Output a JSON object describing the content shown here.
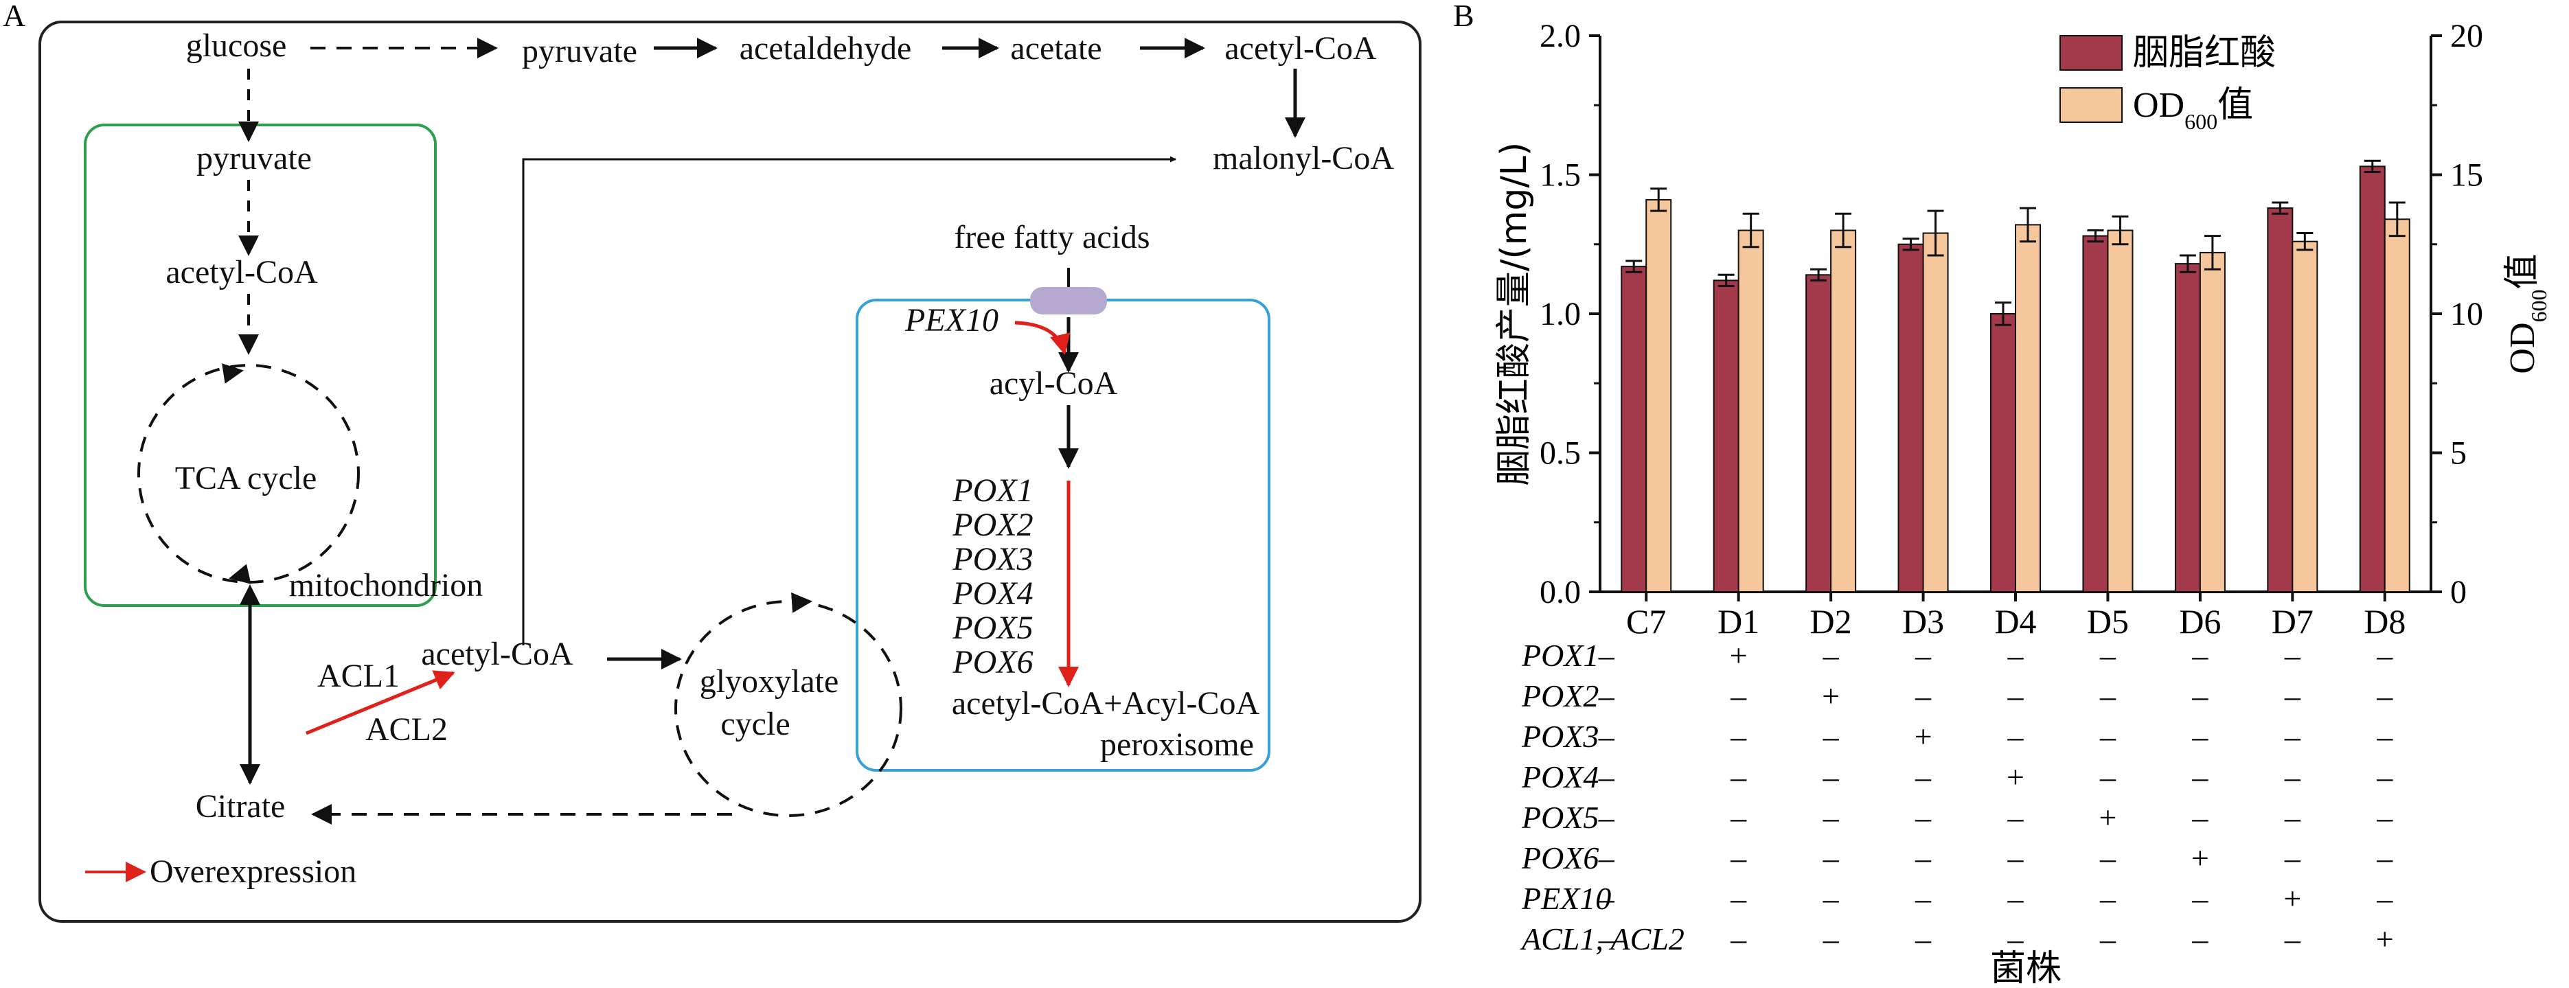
{
  "panel_labels": {
    "a": "A",
    "b": "B"
  },
  "pathway": {
    "nodes": {
      "glucose": "glucose",
      "pyruvate_top": "pyruvate",
      "acetaldehyde": "acetaldehyde",
      "acetate": "acetate",
      "acetyl_coa_top": "acetyl-CoA",
      "malonyl_coa": "malonyl-CoA",
      "pyruvate_mito": "pyruvate",
      "acetyl_coa_mito": "acetyl-CoA",
      "tca_cycle": "TCA cycle",
      "mitochondrion": "mitochondrion",
      "free_fatty_acids": "free fatty acids",
      "pex10": "PEX10",
      "acyl_coa": "acyl-CoA",
      "pox_genes": [
        "POX1",
        "POX2",
        "POX3",
        "POX4",
        "POX5",
        "POX6"
      ],
      "acetyl_acyl_coa": "acetyl-CoA+Acyl-CoA",
      "peroxisome": "peroxisome",
      "acl1": "ACL1",
      "acl2": "ACL2",
      "acetyl_coa_cyto": "acetyl-CoA",
      "glyoxylate_line1": "glyoxylate",
      "glyoxylate_line2": "cycle",
      "citrate": "Citrate"
    },
    "legend_overexpression": "Overexpression",
    "colors": {
      "mito_box": "#2e9e4f",
      "perox_box": "#3aa0d8",
      "overexpression": "#e0201b",
      "transporter": "#b6a9cf"
    }
  },
  "chart_data": {
    "type": "bar",
    "categories": [
      "C7",
      "D1",
      "D2",
      "D3",
      "D4",
      "D5",
      "D6",
      "D7",
      "D8"
    ],
    "series": [
      {
        "name": "胭脂红酸",
        "axis": "left",
        "color": "#a33a4c",
        "values": [
          1.17,
          1.12,
          1.14,
          1.25,
          1.0,
          1.28,
          1.18,
          1.38,
          1.53
        ],
        "errors": [
          0.02,
          0.02,
          0.02,
          0.02,
          0.04,
          0.02,
          0.03,
          0.02,
          0.02
        ]
      },
      {
        "name": "OD",
        "name_sub": "600",
        "name_suffix": "值",
        "axis": "right",
        "color": "#f6c79c",
        "values": [
          14.1,
          13.0,
          13.0,
          12.9,
          13.2,
          13.0,
          12.2,
          12.6,
          13.4
        ],
        "errors": [
          0.4,
          0.6,
          0.6,
          0.8,
          0.6,
          0.5,
          0.6,
          0.3,
          0.6
        ]
      }
    ],
    "ylabel_left": "胭脂红酸产量/(mg/L)",
    "ylabel_right_main": "OD",
    "ylabel_right_sub": "600",
    "ylabel_right_suffix": "值",
    "ylim_left": [
      0,
      2.0
    ],
    "ylim_right": [
      0,
      20
    ],
    "yticks_left": [
      "0.0",
      "0.5",
      "1.0",
      "1.5",
      "2.0"
    ],
    "yticks_right": [
      "0",
      "5",
      "10",
      "15",
      "20"
    ],
    "xlabel": "菌株",
    "legend_position": "top-right",
    "genotype_rows": [
      {
        "gene": "POX1",
        "marks": [
          "–",
          "+",
          "–",
          "–",
          "–",
          "–",
          "–",
          "–",
          "–"
        ]
      },
      {
        "gene": "POX2",
        "marks": [
          "–",
          "–",
          "+",
          "–",
          "–",
          "–",
          "–",
          "–",
          "–"
        ]
      },
      {
        "gene": "POX3",
        "marks": [
          "–",
          "–",
          "–",
          "+",
          "–",
          "–",
          "–",
          "–",
          "–"
        ]
      },
      {
        "gene": "POX4",
        "marks": [
          "–",
          "–",
          "–",
          "–",
          "+",
          "–",
          "–",
          "–",
          "–"
        ]
      },
      {
        "gene": "POX5",
        "marks": [
          "–",
          "–",
          "–",
          "–",
          "–",
          "+",
          "–",
          "–",
          "–"
        ]
      },
      {
        "gene": "POX6",
        "marks": [
          "–",
          "–",
          "–",
          "–",
          "–",
          "–",
          "+",
          "–",
          "–"
        ]
      },
      {
        "gene": "PEX10",
        "marks": [
          "–",
          "–",
          "–",
          "–",
          "–",
          "–",
          "–",
          "+",
          "–"
        ]
      },
      {
        "gene": "ACL1, ACL2",
        "marks": [
          "–",
          "–",
          "–",
          "–",
          "–",
          "–",
          "–",
          "–",
          "+"
        ]
      }
    ]
  }
}
